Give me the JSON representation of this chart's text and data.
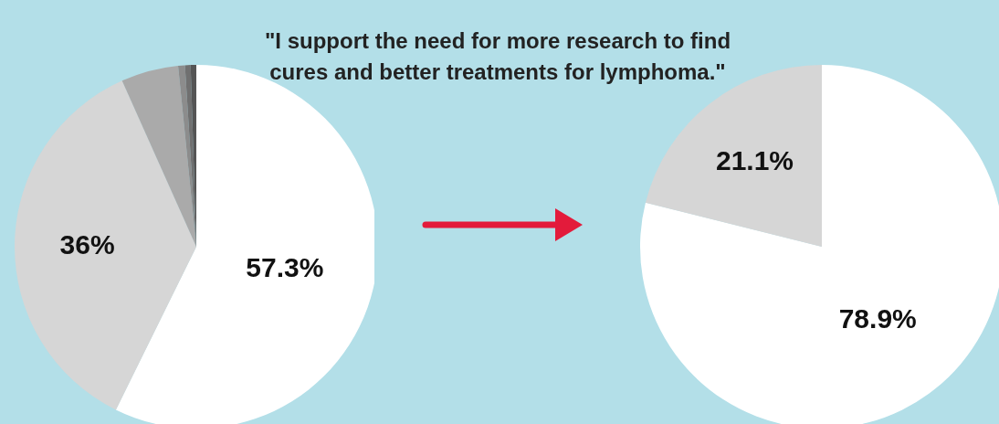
{
  "chart_data": [
    {
      "type": "pie",
      "title": "\"I support the need for more research to find cures and better treatments for lymphoma.\"",
      "categories": [
        null,
        null,
        null,
        null,
        null,
        null
      ],
      "values": [
        57.3,
        36,
        5.1,
        0.6,
        0.5,
        0.5
      ],
      "colors": [
        "#ffffff",
        "#d6d6d6",
        "#aaaaaa",
        "#8c8c8c",
        "#707070",
        "#555555"
      ],
      "value_labels": [
        "57.3%",
        "36%",
        null,
        null,
        null,
        null
      ]
    },
    {
      "type": "pie",
      "categories": [
        null,
        null
      ],
      "values": [
        78.9,
        21.1
      ],
      "colors": [
        "#ffffff",
        "#d6d6d6"
      ],
      "value_labels": [
        "78.9%",
        "21.1%"
      ]
    }
  ]
}
